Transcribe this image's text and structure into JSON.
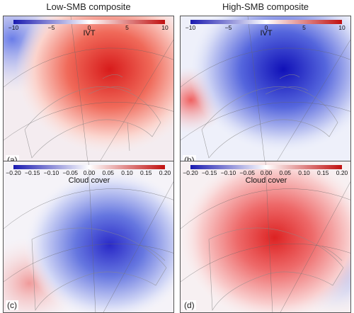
{
  "titles": {
    "left": "Low-SMB composite",
    "right": "High-SMB composite"
  },
  "colors": {
    "negative": "#2b2bd6",
    "neutral": "#ffffff",
    "positive": "#e02020"
  },
  "panels": [
    {
      "letter": "(a)",
      "variable": "IVT",
      "ticks": [
        "−10",
        "−5",
        "0",
        "5",
        "10"
      ],
      "tick_values": [
        -10,
        -5,
        0,
        5,
        10
      ],
      "range": [
        -10,
        10
      ],
      "anomaly": "positive"
    },
    {
      "letter": "(b)",
      "variable": "IVT",
      "ticks": [
        "−10",
        "−5",
        "0",
        "5",
        "10"
      ],
      "tick_values": [
        -10,
        -5,
        0,
        5,
        10
      ],
      "range": [
        -10,
        10
      ],
      "anomaly": "negative"
    },
    {
      "letter": "(c)",
      "variable": "Cloud cover",
      "ticks": [
        "−0.20",
        "−0.15",
        "−0.10",
        "−0.05",
        "0.00",
        "0.05",
        "0.10",
        "0.15",
        "0.20"
      ],
      "tick_values": [
        -0.2,
        -0.15,
        -0.1,
        -0.05,
        0,
        0.05,
        0.1,
        0.15,
        0.2
      ],
      "range": [
        -0.2,
        0.2
      ],
      "anomaly": "negative"
    },
    {
      "letter": "(d)",
      "variable": "Cloud cover",
      "ticks": [
        "−0.20",
        "−0.15",
        "−0.10",
        "−0.05",
        "0.00",
        "0.05",
        "0.10",
        "0.15",
        "0.20"
      ],
      "tick_values": [
        -0.2,
        -0.15,
        -0.1,
        -0.05,
        0,
        0.05,
        0.1,
        0.15,
        0.2
      ],
      "range": [
        -0.2,
        0.2
      ],
      "anomaly": "positive"
    }
  ]
}
